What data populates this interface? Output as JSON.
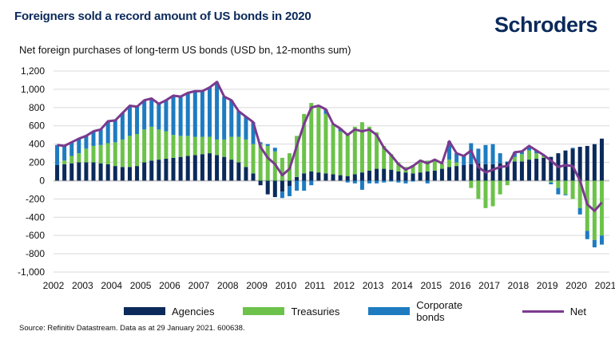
{
  "chart_data": {
    "type": "bar",
    "title": "Foreigners sold a record amount of US bonds in 2020",
    "subtitle": "Net foreign purchases of long-term US bonds (USD bn, 12-months sum)",
    "source": "Source: Refinitiv Datastream. Data as at 29 January 2021. 600638.",
    "brand": "Schroders",
    "stacked": true,
    "x_start_year": 2002,
    "x_frequency": "quarterly",
    "xlim": [
      2002,
      2021
    ],
    "ylim": [
      -1000,
      1200
    ],
    "grid": true,
    "legend_position": "bottom",
    "x_tick_labels": [
      "2002",
      "2003",
      "2004",
      "2005",
      "2006",
      "2007",
      "2008",
      "2009",
      "2010",
      "2011",
      "2012",
      "2013",
      "2014",
      "2015",
      "2016",
      "2017",
      "2018",
      "2019",
      "2020",
      "2021"
    ],
    "y_tick_labels": [
      "1,200",
      "1,000",
      "800",
      "600",
      "400",
      "200",
      "0",
      "-200",
      "-400",
      "-600",
      "-800",
      "-1,000"
    ],
    "y_ticks": [
      1200,
      1000,
      800,
      600,
      400,
      200,
      0,
      -200,
      -400,
      -600,
      -800,
      -1000
    ],
    "series": [
      {
        "name": "Agencies",
        "kind": "bar",
        "color": "#0b2a5b",
        "values": [
          170,
          180,
          190,
          200,
          200,
          200,
          190,
          180,
          160,
          150,
          150,
          160,
          200,
          220,
          230,
          240,
          250,
          260,
          270,
          280,
          290,
          300,
          280,
          260,
          230,
          200,
          150,
          80,
          -50,
          -150,
          -180,
          -120,
          -60,
          40,
          80,
          100,
          90,
          80,
          70,
          60,
          50,
          70,
          90,
          110,
          130,
          130,
          120,
          100,
          90,
          80,
          90,
          100,
          110,
          130,
          150,
          160,
          170,
          180,
          190,
          180,
          180,
          190,
          200,
          210,
          210,
          230,
          240,
          250,
          260,
          300,
          330,
          350,
          370,
          380,
          400,
          460
        ]
      },
      {
        "name": "Treasuries",
        "kind": "bar",
        "color": "#6cc24a",
        "values": [
          0,
          40,
          80,
          100,
          150,
          180,
          200,
          230,
          260,
          300,
          340,
          350,
          360,
          370,
          330,
          300,
          250,
          230,
          220,
          200,
          190,
          180,
          170,
          190,
          250,
          280,
          300,
          320,
          400,
          380,
          320,
          250,
          300,
          450,
          650,
          750,
          730,
          650,
          550,
          480,
          470,
          520,
          550,
          480,
          400,
          250,
          170,
          100,
          60,
          90,
          130,
          120,
          120,
          60,
          80,
          40,
          0,
          -80,
          -200,
          -300,
          -280,
          -150,
          -50,
          50,
          80,
          100,
          60,
          30,
          -20,
          -80,
          -150,
          -200,
          -300,
          -550,
          -650,
          -600
        ]
      },
      {
        "name": "Corporate bonds",
        "kind": "bar",
        "color": "#1e7bc0",
        "values": [
          220,
          160,
          150,
          160,
          140,
          160,
          170,
          240,
          240,
          290,
          330,
          300,
          320,
          310,
          280,
          340,
          430,
          430,
          470,
          500,
          500,
          540,
          630,
          470,
          400,
          280,
          250,
          240,
          20,
          20,
          40,
          -70,
          -110,
          -110,
          -110,
          -50,
          0,
          50,
          0,
          30,
          -20,
          -30,
          -100,
          -30,
          -30,
          -20,
          -10,
          -20,
          -30,
          -10,
          0,
          -30,
          0,
          0,
          200,
          100,
          100,
          230,
          160,
          210,
          220,
          110,
          10,
          50,
          30,
          50,
          30,
          0,
          -20,
          -70,
          -10,
          10,
          -70,
          -90,
          -80,
          -100
        ]
      },
      {
        "name": "Net",
        "kind": "line",
        "color": "#7b3a8e",
        "values": [
          390,
          380,
          420,
          460,
          490,
          540,
          560,
          650,
          660,
          740,
          820,
          810,
          880,
          900,
          840,
          880,
          930,
          920,
          960,
          980,
          980,
          1020,
          1080,
          920,
          880,
          760,
          700,
          640,
          370,
          250,
          180,
          60,
          130,
          380,
          620,
          800,
          820,
          780,
          620,
          570,
          500,
          560,
          540,
          560,
          500,
          360,
          280,
          180,
          120,
          160,
          220,
          190,
          230,
          190,
          430,
          300,
          270,
          330,
          150,
          90,
          120,
          150,
          160,
          310,
          320,
          380,
          330,
          280,
          220,
          150,
          170,
          160,
          0,
          -260,
          -330,
          -240
        ]
      }
    ]
  }
}
